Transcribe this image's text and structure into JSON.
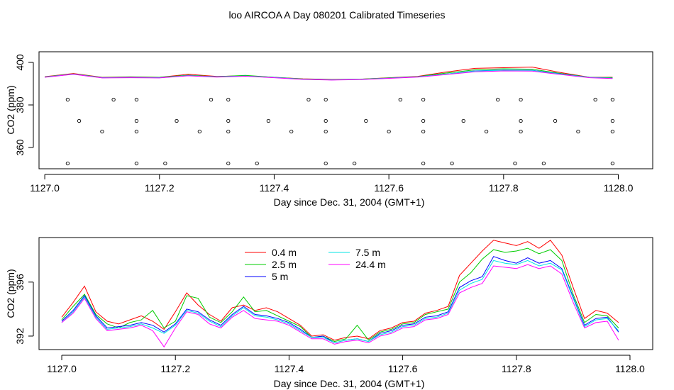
{
  "title": "loo AIRCOA A  Day 080201  Calibrated Timeseries",
  "series_colors": {
    "0.4 m": "#ff0000",
    "2.5 m": "#00cd00",
    "5 m": "#0000ff",
    "7.5 m": "#00e5e5",
    "24.4 m": "#ff00ff"
  },
  "chart_data": [
    {
      "type": "line",
      "title": "",
      "xlabel": "Day since Dec. 31, 2004 (GMT+1)",
      "ylabel": "CO2 (ppm)",
      "xlim": [
        1126.99,
        1128.06
      ],
      "ylim": [
        350,
        405
      ],
      "x_ticks": [
        "1127.0",
        "1127.2",
        "1127.4",
        "1127.6",
        "1127.8",
        "1128.0"
      ],
      "y_ticks": [
        "360",
        "380",
        "400"
      ],
      "grid": false,
      "series": [
        {
          "name": "0.4 m",
          "x": [
            1127.0,
            1127.05,
            1127.1,
            1127.15,
            1127.2,
            1127.25,
            1127.3,
            1127.35,
            1127.4,
            1127.45,
            1127.5,
            1127.55,
            1127.6,
            1127.65,
            1127.7,
            1127.75,
            1127.8,
            1127.85,
            1127.9,
            1127.95,
            1127.99
          ],
          "y": [
            393.3,
            394.8,
            393.0,
            393.2,
            393.0,
            394.4,
            393.4,
            393.7,
            393.0,
            392.3,
            392.0,
            392.1,
            392.8,
            393.4,
            395.5,
            397.2,
            397.5,
            397.8,
            395.2,
            393.0,
            393.0
          ]
        },
        {
          "name": "2.5 m",
          "x": [
            1127.0,
            1127.05,
            1127.1,
            1127.15,
            1127.2,
            1127.25,
            1127.3,
            1127.35,
            1127.4,
            1127.45,
            1127.5,
            1127.55,
            1127.6,
            1127.65,
            1127.7,
            1127.75,
            1127.8,
            1127.85,
            1127.9,
            1127.95,
            1127.99
          ],
          "y": [
            393.2,
            394.6,
            392.9,
            393.1,
            393.0,
            394.0,
            393.3,
            393.9,
            393.0,
            392.2,
            391.9,
            392.1,
            392.7,
            393.3,
            395.0,
            396.5,
            397.0,
            396.8,
            394.8,
            393.0,
            392.8
          ]
        },
        {
          "name": "5 m",
          "x": [
            1127.0,
            1127.05,
            1127.1,
            1127.15,
            1127.2,
            1127.25,
            1127.3,
            1127.35,
            1127.4,
            1127.45,
            1127.5,
            1127.55,
            1127.6,
            1127.65,
            1127.7,
            1127.75,
            1127.8,
            1127.85,
            1127.9,
            1127.95,
            1127.99
          ],
          "y": [
            393.1,
            394.5,
            392.8,
            392.9,
            392.8,
            393.8,
            393.2,
            393.6,
            392.9,
            392.1,
            391.8,
            392.0,
            392.6,
            393.2,
            394.5,
            396.0,
            396.4,
            396.3,
            394.6,
            392.9,
            392.6
          ]
        },
        {
          "name": "7.5 m",
          "x": [
            1127.0,
            1127.05,
            1127.1,
            1127.15,
            1127.2,
            1127.25,
            1127.3,
            1127.35,
            1127.4,
            1127.45,
            1127.5,
            1127.55,
            1127.6,
            1127.65,
            1127.7,
            1127.75,
            1127.8,
            1127.85,
            1127.9,
            1127.95,
            1127.99
          ],
          "y": [
            393.1,
            394.5,
            392.8,
            392.9,
            392.8,
            393.8,
            393.2,
            393.6,
            392.9,
            392.1,
            391.8,
            392.0,
            392.6,
            393.2,
            394.5,
            395.9,
            396.3,
            396.2,
            394.5,
            392.9,
            392.6
          ]
        },
        {
          "name": "24.4 m",
          "x": [
            1127.0,
            1127.05,
            1127.1,
            1127.15,
            1127.2,
            1127.25,
            1127.3,
            1127.35,
            1127.4,
            1127.45,
            1127.5,
            1127.55,
            1127.6,
            1127.65,
            1127.7,
            1127.75,
            1127.8,
            1127.85,
            1127.9,
            1127.95,
            1127.99
          ],
          "y": [
            393.0,
            394.4,
            392.7,
            392.8,
            392.7,
            393.7,
            393.1,
            393.5,
            392.8,
            392.0,
            391.7,
            391.9,
            392.5,
            393.1,
            394.3,
            395.6,
            396.0,
            395.9,
            394.3,
            392.8,
            392.4
          ]
        }
      ],
      "points": {
        "x": [
          1127.04,
          1127.12,
          1127.16,
          1127.29,
          1127.32,
          1127.46,
          1127.49,
          1127.62,
          1127.66,
          1127.79,
          1127.83,
          1127.96,
          1127.99,
          1127.1,
          1127.16,
          1127.27,
          1127.32,
          1127.43,
          1127.49,
          1127.6,
          1127.66,
          1127.77,
          1127.83,
          1127.93,
          1127.99,
          1127.06,
          1127.16,
          1127.23,
          1127.32,
          1127.39,
          1127.49,
          1127.56,
          1127.66,
          1127.73,
          1127.83,
          1127.89,
          1127.99,
          1127.04,
          1127.16,
          1127.21,
          1127.32,
          1127.37,
          1127.49,
          1127.54,
          1127.66,
          1127.71,
          1127.82,
          1127.87,
          1127.99
        ],
        "y": [
          382.5,
          382.5,
          382.5,
          382.5,
          382.5,
          382.5,
          382.5,
          382.5,
          382.5,
          382.5,
          382.5,
          382.5,
          382.5,
          367.5,
          367.5,
          367.5,
          367.5,
          367.5,
          367.5,
          367.5,
          367.5,
          367.5,
          367.5,
          367.5,
          367.5,
          372.5,
          372.5,
          372.5,
          372.5,
          372.5,
          372.5,
          372.5,
          372.5,
          372.5,
          372.5,
          372.5,
          372.5,
          352.5,
          352.5,
          352.5,
          352.5,
          352.5,
          352.5,
          352.5,
          352.5,
          352.5,
          352.5,
          352.5,
          352.5
        ]
      }
    },
    {
      "type": "line",
      "title": "",
      "xlabel": "Day since Dec. 31, 2004 (GMT+1)",
      "ylabel": "CO2 (ppm)",
      "xlim": [
        1126.96,
        1128.04
      ],
      "ylim": [
        391.0,
        399.3
      ],
      "x_ticks": [
        "1127.0",
        "1127.2",
        "1127.4",
        "1127.6",
        "1127.8",
        "1128.0"
      ],
      "y_ticks": [
        "392",
        "396"
      ],
      "grid": false,
      "legend_position": "top-left",
      "series": [
        {
          "name": "0.4 m",
          "x": [
            1127.0,
            1127.02,
            1127.04,
            1127.06,
            1127.08,
            1127.1,
            1127.12,
            1127.14,
            1127.16,
            1127.18,
            1127.2,
            1127.22,
            1127.24,
            1127.26,
            1127.28,
            1127.3,
            1127.32,
            1127.34,
            1127.36,
            1127.38,
            1127.4,
            1127.42,
            1127.44,
            1127.46,
            1127.48,
            1127.5,
            1127.52,
            1127.54,
            1127.56,
            1127.58,
            1127.6,
            1127.62,
            1127.64,
            1127.66,
            1127.68,
            1127.7,
            1127.72,
            1127.74,
            1127.76,
            1127.78,
            1127.8,
            1127.82,
            1127.84,
            1127.86,
            1127.88,
            1127.9,
            1127.92,
            1127.94,
            1127.96,
            1127.98
          ],
          "y": [
            393.4,
            394.5,
            395.7,
            393.8,
            393.1,
            392.9,
            393.2,
            393.5,
            393.1,
            392.5,
            393.8,
            395.2,
            394.3,
            393.6,
            393.1,
            394.1,
            394.3,
            393.9,
            394.1,
            393.8,
            393.3,
            392.8,
            392.0,
            392.1,
            391.7,
            391.9,
            392.0,
            391.8,
            392.4,
            392.6,
            393.0,
            393.1,
            393.7,
            393.9,
            394.2,
            396.5,
            397.4,
            398.3,
            399.1,
            398.9,
            398.7,
            399.0,
            398.5,
            399.1,
            398.0,
            395.6,
            393.3,
            393.9,
            393.7,
            393.0
          ]
        },
        {
          "name": "2.5 m",
          "x": [
            1127.0,
            1127.02,
            1127.04,
            1127.06,
            1127.08,
            1127.1,
            1127.12,
            1127.14,
            1127.16,
            1127.18,
            1127.2,
            1127.22,
            1127.24,
            1127.26,
            1127.28,
            1127.3,
            1127.32,
            1127.34,
            1127.36,
            1127.38,
            1127.4,
            1127.42,
            1127.44,
            1127.46,
            1127.48,
            1127.5,
            1127.52,
            1127.54,
            1127.56,
            1127.58,
            1127.6,
            1127.62,
            1127.64,
            1127.66,
            1127.68,
            1127.7,
            1127.72,
            1127.74,
            1127.76,
            1127.78,
            1127.8,
            1127.82,
            1127.84,
            1127.86,
            1127.88,
            1127.9,
            1127.92,
            1127.94,
            1127.96,
            1127.98
          ],
          "y": [
            393.2,
            394.2,
            395.1,
            393.6,
            392.9,
            392.6,
            393.0,
            393.2,
            393.9,
            392.6,
            393.1,
            395.0,
            394.8,
            393.4,
            393.0,
            393.8,
            394.9,
            393.8,
            393.9,
            393.5,
            393.1,
            392.7,
            391.9,
            392.0,
            391.6,
            391.8,
            392.8,
            391.7,
            392.3,
            392.5,
            392.9,
            393.0,
            393.6,
            393.8,
            394.0,
            396.0,
            396.7,
            397.7,
            398.4,
            398.2,
            398.3,
            398.5,
            398.1,
            398.4,
            397.6,
            395.1,
            393.0,
            393.6,
            393.5,
            392.6
          ]
        },
        {
          "name": "5 m",
          "x": [
            1127.0,
            1127.02,
            1127.04,
            1127.06,
            1127.08,
            1127.1,
            1127.12,
            1127.14,
            1127.16,
            1127.18,
            1127.2,
            1127.22,
            1127.24,
            1127.26,
            1127.28,
            1127.3,
            1127.32,
            1127.34,
            1127.36,
            1127.38,
            1127.4,
            1127.42,
            1127.44,
            1127.46,
            1127.48,
            1127.5,
            1127.52,
            1127.54,
            1127.56,
            1127.58,
            1127.6,
            1127.62,
            1127.64,
            1127.66,
            1127.68,
            1127.7,
            1127.72,
            1127.74,
            1127.76,
            1127.78,
            1127.8,
            1127.82,
            1127.84,
            1127.86,
            1127.88,
            1127.9,
            1127.92,
            1127.94,
            1127.96,
            1127.98
          ],
          "y": [
            393.1,
            393.9,
            395.0,
            393.5,
            392.6,
            392.7,
            392.8,
            393.0,
            392.8,
            392.3,
            392.9,
            394.0,
            393.8,
            393.2,
            392.8,
            393.6,
            394.2,
            393.6,
            393.5,
            393.3,
            393.0,
            392.5,
            391.9,
            392.0,
            391.5,
            391.7,
            391.8,
            391.6,
            392.2,
            392.4,
            392.8,
            392.9,
            393.4,
            393.5,
            393.8,
            395.6,
            396.1,
            396.4,
            397.9,
            397.6,
            397.4,
            397.8,
            397.4,
            397.6,
            397.0,
            394.9,
            392.8,
            393.3,
            393.4,
            392.3
          ]
        },
        {
          "name": "7.5 m",
          "x": [
            1127.0,
            1127.02,
            1127.04,
            1127.06,
            1127.08,
            1127.1,
            1127.12,
            1127.14,
            1127.16,
            1127.18,
            1127.2,
            1127.22,
            1127.24,
            1127.26,
            1127.28,
            1127.3,
            1127.32,
            1127.34,
            1127.36,
            1127.38,
            1127.4,
            1127.42,
            1127.44,
            1127.46,
            1127.48,
            1127.5,
            1127.52,
            1127.54,
            1127.56,
            1127.58,
            1127.6,
            1127.62,
            1127.64,
            1127.66,
            1127.68,
            1127.7,
            1127.72,
            1127.74,
            1127.76,
            1127.78,
            1127.8,
            1127.82,
            1127.84,
            1127.86,
            1127.88,
            1127.9,
            1127.92,
            1127.94,
            1127.96,
            1127.98
          ],
          "y": [
            393.0,
            393.8,
            394.9,
            393.4,
            392.5,
            392.6,
            392.7,
            392.9,
            392.6,
            392.2,
            392.8,
            393.9,
            393.7,
            393.1,
            392.7,
            393.5,
            394.1,
            393.5,
            393.4,
            393.2,
            392.9,
            392.4,
            391.9,
            391.9,
            391.5,
            391.7,
            391.8,
            391.6,
            392.1,
            392.3,
            392.7,
            392.8,
            393.3,
            393.4,
            393.7,
            395.4,
            395.9,
            396.2,
            397.6,
            397.4,
            397.3,
            397.6,
            397.2,
            397.4,
            396.9,
            394.8,
            392.7,
            393.2,
            393.3,
            392.4
          ]
        },
        {
          "name": "24.4 m",
          "x": [
            1127.0,
            1127.02,
            1127.04,
            1127.06,
            1127.08,
            1127.1,
            1127.12,
            1127.14,
            1127.16,
            1127.18,
            1127.2,
            1127.22,
            1127.24,
            1127.26,
            1127.28,
            1127.3,
            1127.32,
            1127.34,
            1127.36,
            1127.38,
            1127.4,
            1127.42,
            1127.44,
            1127.46,
            1127.48,
            1127.5,
            1127.52,
            1127.54,
            1127.56,
            1127.58,
            1127.6,
            1127.62,
            1127.64,
            1127.66,
            1127.68,
            1127.7,
            1127.72,
            1127.74,
            1127.76,
            1127.78,
            1127.8,
            1127.82,
            1127.84,
            1127.86,
            1127.88,
            1127.9,
            1127.92,
            1127.94,
            1127.96,
            1127.98
          ],
          "y": [
            393.0,
            393.7,
            394.8,
            393.3,
            392.4,
            392.5,
            392.6,
            392.8,
            392.4,
            391.2,
            392.6,
            393.8,
            393.6,
            392.9,
            392.6,
            393.4,
            393.9,
            393.3,
            393.2,
            393.1,
            392.8,
            392.3,
            391.8,
            391.8,
            391.4,
            391.6,
            391.7,
            391.5,
            392.0,
            392.2,
            392.6,
            392.7,
            393.2,
            393.3,
            393.6,
            395.2,
            395.6,
            395.9,
            397.2,
            397.1,
            397.0,
            397.3,
            397.0,
            397.2,
            396.6,
            394.5,
            392.6,
            393.0,
            393.1,
            391.7
          ]
        }
      ]
    }
  ]
}
